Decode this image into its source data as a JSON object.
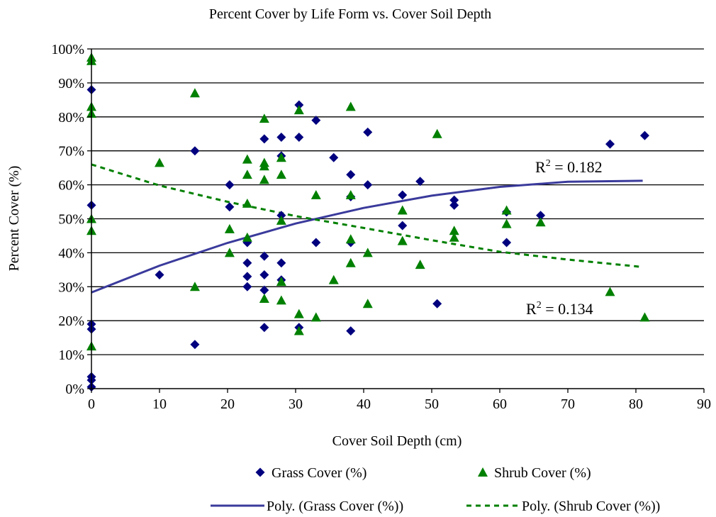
{
  "chart_data": {
    "type": "scatter",
    "title": "Percent Cover by Life Form vs. Cover Soil Depth",
    "xlabel": "Cover Soil Depth (cm)",
    "ylabel": "Percent Cover (%)",
    "xlim": [
      0,
      90
    ],
    "ylim": [
      0,
      100
    ],
    "x_ticks": [
      "0",
      "10",
      "20",
      "30",
      "40",
      "50",
      "60",
      "70",
      "80",
      "90"
    ],
    "y_ticks": [
      "0%",
      "10%",
      "20%",
      "30%",
      "40%",
      "50%",
      "60%",
      "70%",
      "80%",
      "90%",
      "100%"
    ],
    "grid": "horizontal",
    "legend_position": "bottom",
    "colors": {
      "grass": "#00007f",
      "shrub": "#008000",
      "grass_trend": "#3a3a9c",
      "shrub_trend": "#008000"
    },
    "series": [
      {
        "name": "Grass Cover (%)",
        "marker": "diamond",
        "points": [
          [
            0,
            88
          ],
          [
            0,
            54
          ],
          [
            0,
            19
          ],
          [
            0,
            17.5
          ],
          [
            0,
            3.5
          ],
          [
            0,
            2.5
          ],
          [
            0,
            0.5
          ],
          [
            10,
            33.5
          ],
          [
            15.2,
            70
          ],
          [
            15.2,
            13
          ],
          [
            20.3,
            60
          ],
          [
            20.3,
            53.5
          ],
          [
            22.9,
            43
          ],
          [
            22.9,
            37
          ],
          [
            22.9,
            33
          ],
          [
            22.9,
            30
          ],
          [
            25.4,
            73.5
          ],
          [
            25.4,
            39
          ],
          [
            25.4,
            33.5
          ],
          [
            25.4,
            29
          ],
          [
            25.4,
            18
          ],
          [
            27.9,
            74
          ],
          [
            27.9,
            68.5
          ],
          [
            27.9,
            51
          ],
          [
            27.9,
            37
          ],
          [
            27.9,
            32
          ],
          [
            30.5,
            83.5
          ],
          [
            30.5,
            74
          ],
          [
            30.5,
            18
          ],
          [
            33,
            79
          ],
          [
            33,
            43
          ],
          [
            35.6,
            68
          ],
          [
            38.1,
            63
          ],
          [
            38.1,
            56.5
          ],
          [
            38.1,
            43
          ],
          [
            38.1,
            17
          ],
          [
            40.6,
            75.5
          ],
          [
            40.6,
            60
          ],
          [
            45.7,
            57
          ],
          [
            45.7,
            48
          ],
          [
            48.3,
            61
          ],
          [
            50.8,
            25
          ],
          [
            53.3,
            55.5
          ],
          [
            53.3,
            54
          ],
          [
            61,
            52
          ],
          [
            61,
            43
          ],
          [
            66,
            51
          ],
          [
            76.2,
            72
          ],
          [
            81.3,
            74.5
          ]
        ]
      },
      {
        "name": "Shrub Cover (%)",
        "marker": "triangle",
        "points": [
          [
            0,
            97.5
          ],
          [
            0,
            96.5
          ],
          [
            0,
            83
          ],
          [
            0,
            81
          ],
          [
            0,
            50
          ],
          [
            0,
            46.5
          ],
          [
            0,
            12.5
          ],
          [
            10,
            66.5
          ],
          [
            15.2,
            87
          ],
          [
            15.2,
            30
          ],
          [
            20.3,
            47
          ],
          [
            20.3,
            40
          ],
          [
            22.9,
            67.5
          ],
          [
            22.9,
            63
          ],
          [
            22.9,
            54.5
          ],
          [
            22.9,
            44.5
          ],
          [
            25.4,
            79.5
          ],
          [
            25.4,
            66.5
          ],
          [
            25.4,
            65.5
          ],
          [
            25.4,
            61.5
          ],
          [
            25.4,
            26.5
          ],
          [
            27.9,
            68
          ],
          [
            27.9,
            63
          ],
          [
            27.9,
            49.5
          ],
          [
            27.9,
            31.5
          ],
          [
            27.9,
            26
          ],
          [
            30.5,
            82
          ],
          [
            30.5,
            22
          ],
          [
            30.5,
            17
          ],
          [
            33,
            57
          ],
          [
            33,
            21
          ],
          [
            35.6,
            32
          ],
          [
            38.1,
            83
          ],
          [
            38.1,
            57
          ],
          [
            38.1,
            44
          ],
          [
            38.1,
            37
          ],
          [
            40.6,
            40
          ],
          [
            40.6,
            25
          ],
          [
            45.7,
            52.5
          ],
          [
            45.7,
            43.5
          ],
          [
            48.3,
            36.5
          ],
          [
            50.8,
            75
          ],
          [
            53.3,
            46.5
          ],
          [
            53.3,
            44.5
          ],
          [
            61,
            52.5
          ],
          [
            61,
            48.5
          ],
          [
            66,
            49
          ],
          [
            76.2,
            28.5
          ],
          [
            81.3,
            21
          ]
        ]
      }
    ],
    "trendlines": [
      {
        "name": "Poly. (Grass Cover (%))",
        "style": "solid",
        "points": [
          [
            0,
            28.3
          ],
          [
            10,
            36.2
          ],
          [
            20,
            42.9
          ],
          [
            30,
            48.6
          ],
          [
            40,
            53.2
          ],
          [
            50,
            56.8
          ],
          [
            60,
            59.4
          ],
          [
            70,
            60.9
          ],
          [
            81,
            61.2
          ]
        ],
        "r2_label": "R",
        "r2_value": " = 0.182"
      },
      {
        "name": "Poly. (Shrub Cover (%))",
        "style": "dashed",
        "points": [
          [
            0,
            66
          ],
          [
            10,
            59.8
          ],
          [
            20,
            55
          ],
          [
            30,
            50.8
          ],
          [
            40,
            47.3
          ],
          [
            50,
            43.7
          ],
          [
            60,
            40.3
          ],
          [
            70,
            38
          ],
          [
            81,
            35.8
          ]
        ],
        "r2_label": "R",
        "r2_value": " = 0.134"
      }
    ],
    "r2_superscript": "2"
  }
}
